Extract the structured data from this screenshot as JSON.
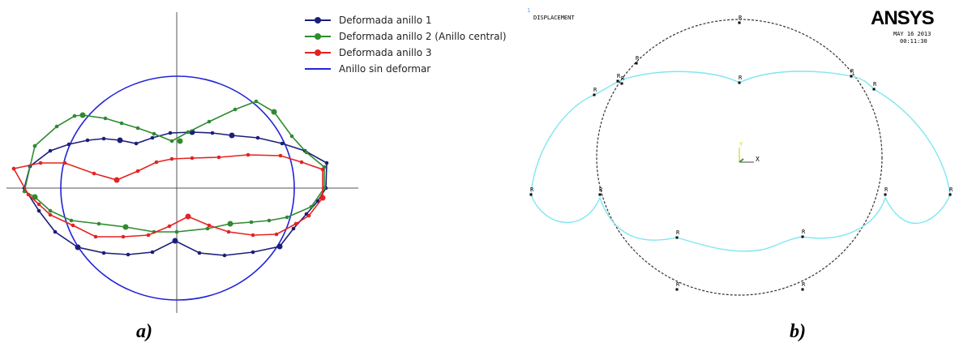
{
  "panel_a": {
    "caption": "a)",
    "legend": [
      {
        "label": "Deformada anillo 1",
        "color": "#1c1e7a",
        "marker": true
      },
      {
        "label": "Deformada anillo 2 (Anillo central)",
        "color": "#2e8b2e",
        "marker": true
      },
      {
        "label": "Deformada anillo 3",
        "color": "#e52222",
        "marker": true
      },
      {
        "label": "Anillo sin deformar",
        "color": "#2222dd",
        "marker": false
      }
    ]
  },
  "panel_b": {
    "caption": "b)",
    "index_number": "1",
    "title": "DISPLACEMENT",
    "logo": "ANSYS",
    "date": "MAY 16 2013",
    "time": "00:11:30",
    "axis_x": "X",
    "axis_y": "Y",
    "node_label": "R",
    "colors": {
      "deformed": "#7fe6f0",
      "undeformed": "#333333"
    }
  }
}
